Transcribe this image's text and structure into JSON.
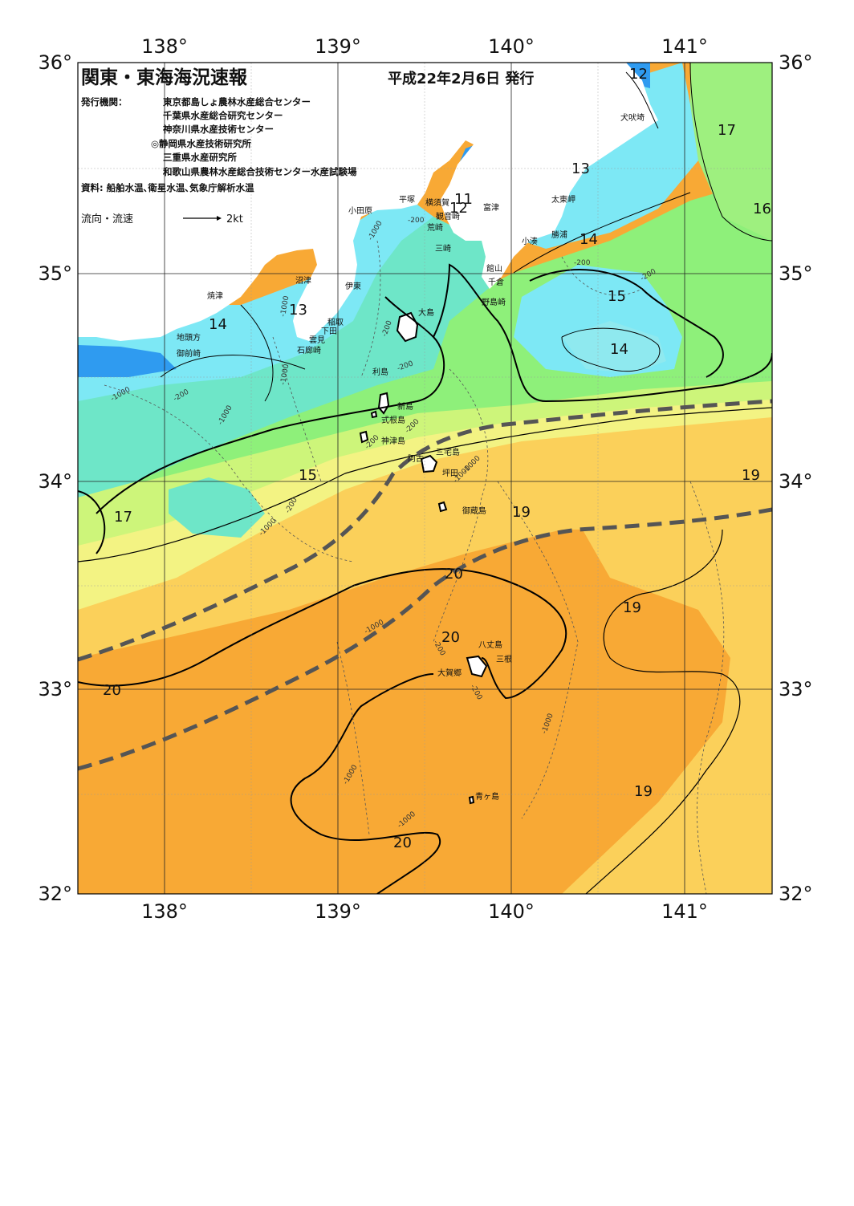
{
  "title": "関東・東海海況速報",
  "issue_date": "平成22年2月6日 発行",
  "issuer_label": "発行機関：",
  "issuers": [
    "東京都島しょ農林水産総合センター",
    "千葉県水産総合研究センター",
    "神奈川県水産技術センター",
    "◎静岡県水産技術研究所",
    "三重県水産研究所",
    "和歌山県農林水産総合技術センター水産試験場"
  ],
  "sources": "資料: 船舶水温､衛星水温､気象庁解析水温",
  "legend": {
    "label": "流向・流速",
    "unit": "2kt"
  },
  "axes": {
    "lon_ticks": [
      "138°",
      "139°",
      "140°",
      "141°"
    ],
    "lat_ticks": [
      "36°",
      "35°",
      "34°",
      "33°",
      "32°"
    ]
  },
  "place_names": [
    "犬吠埼",
    "太東岬",
    "勝浦",
    "小湊",
    "館山",
    "千倉",
    "野島崎",
    "富津",
    "観音崎",
    "横須賀",
    "荒崎",
    "三崎",
    "平塚",
    "小田原",
    "伊東",
    "稲取",
    "下田",
    "雲見",
    "石廊崎",
    "沼津",
    "焼津",
    "地頭方",
    "御前崎",
    "大島",
    "利島",
    "新島",
    "式根島",
    "神津島",
    "三宅島",
    "阿古",
    "坪田",
    "御蔵島",
    "八丈島",
    "三根",
    "大賀郷",
    "青ヶ島"
  ],
  "temperature_labels": [
    "12",
    "17",
    "13",
    "11",
    "12",
    "16",
    "14",
    "13",
    "14",
    "15",
    "14",
    "15",
    "17",
    "19",
    "19",
    "20",
    "19",
    "20",
    "20",
    "19",
    "20"
  ],
  "depth_labels": [
    "-200",
    "-1000",
    "-200",
    "-1000",
    "-200",
    "-1000",
    "-200",
    "-200",
    "-200",
    "-200",
    "-1000",
    "-1000",
    "-1000",
    "-200",
    "-1000",
    "-200",
    "-1000",
    "-200",
    "-1000",
    "-1000",
    "-1000",
    "-200",
    "-1000"
  ],
  "colors": {
    "cold_blue": "#2f9bf0",
    "cyan": "#7de8f5",
    "cyan_green": "#6ee6c8",
    "green": "#8ef07a",
    "yellow_green": "#cdf57a",
    "yellow": "#f3f383",
    "light_orange": "#fbd05a",
    "orange": "#f8a935",
    "deep_orange": "#f59a26",
    "land": "#ffffff",
    "kuroshio_axis": "#555555"
  }
}
